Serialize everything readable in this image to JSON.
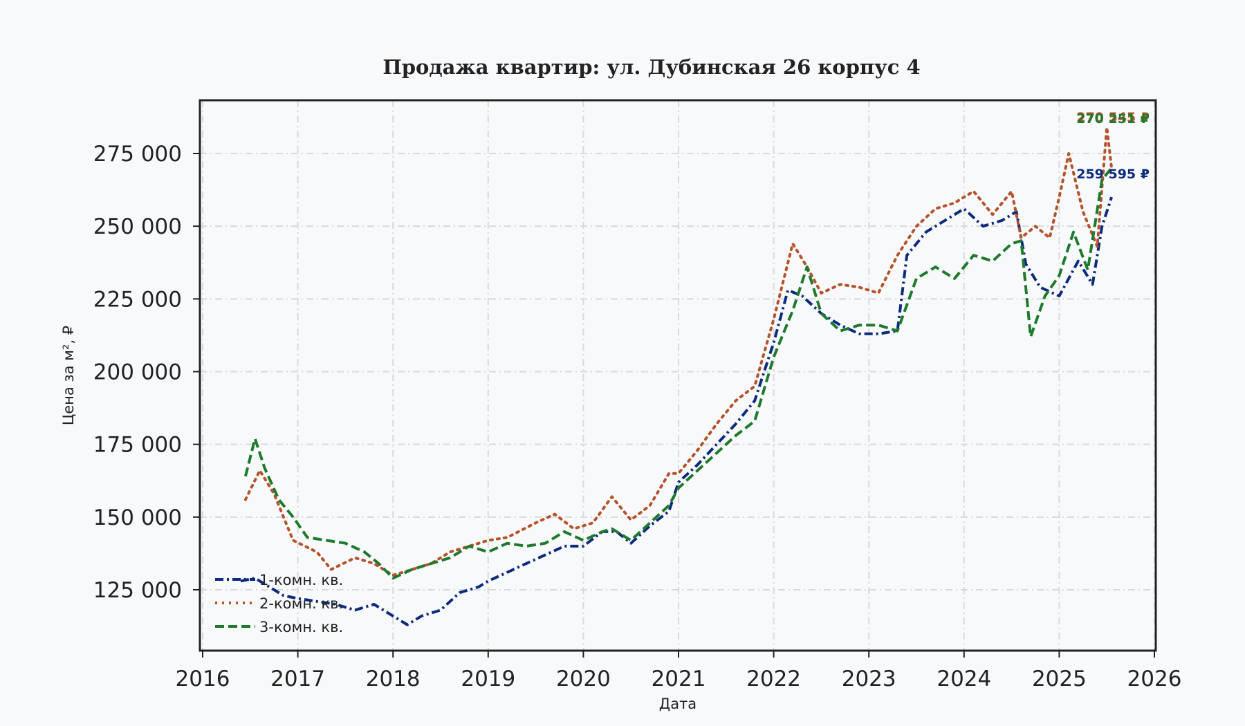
{
  "chart_data": {
    "type": "line",
    "title": "Продажа квартир: ул. Дубинская 26 корпус 4",
    "xlabel": "Дата",
    "ylabel": "Цена за м², ₽",
    "xlim": [
      2016.0,
      2026.0
    ],
    "ylim": [
      105000,
      292000
    ],
    "x_ticks": [
      "2016",
      "2017",
      "2018",
      "2019",
      "2020",
      "2021",
      "2022",
      "2023",
      "2024",
      "2025",
      "2026"
    ],
    "y_ticks": [
      "125 000",
      "150 000",
      "175 000",
      "200 000",
      "225 000",
      "250 000",
      "275 000"
    ],
    "y_tick_values": [
      125000,
      150000,
      175000,
      200000,
      225000,
      250000,
      275000
    ],
    "grid": true,
    "legend_position": "bottom-left",
    "series": [
      {
        "name": "1-комн. кв.",
        "color": "#0d2b7e",
        "style": "dashdot",
        "end_label": "259 595 ₽",
        "x": [
          2016.4,
          2016.55,
          2016.7,
          2016.85,
          2017.0,
          2017.2,
          2017.4,
          2017.6,
          2017.8,
          2018.0,
          2018.15,
          2018.3,
          2018.5,
          2018.7,
          2018.9,
          2019.0,
          2019.2,
          2019.4,
          2019.6,
          2019.8,
          2020.0,
          2020.2,
          2020.35,
          2020.5,
          2020.7,
          2020.9,
          2021.0,
          2021.2,
          2021.4,
          2021.6,
          2021.8,
          2022.0,
          2022.15,
          2022.3,
          2022.5,
          2022.7,
          2022.9,
          2023.1,
          2023.3,
          2023.4,
          2023.6,
          2023.8,
          2024.0,
          2024.2,
          2024.4,
          2024.55,
          2024.65,
          2024.8,
          2025.0,
          2025.2,
          2025.35,
          2025.45,
          2025.55
        ],
        "y": [
          128000,
          129000,
          126000,
          123000,
          122000,
          121000,
          120000,
          118000,
          120000,
          116000,
          113000,
          116000,
          118000,
          124000,
          126000,
          128000,
          131000,
          134000,
          137000,
          140000,
          140000,
          145000,
          145000,
          141000,
          147000,
          152000,
          162000,
          168000,
          175000,
          182000,
          190000,
          210000,
          228000,
          226000,
          220000,
          216000,
          213000,
          213000,
          214000,
          240000,
          248000,
          252000,
          256000,
          250000,
          252000,
          255000,
          237000,
          229000,
          226000,
          238000,
          230000,
          250000,
          260000
        ]
      },
      {
        "name": "2-комн. кв.",
        "color": "#b5532a",
        "style": "dotted",
        "end_label": "270 545 ₽",
        "x": [
          2016.45,
          2016.6,
          2016.75,
          2016.95,
          2017.2,
          2017.35,
          2017.6,
          2017.8,
          2018.0,
          2018.2,
          2018.4,
          2018.6,
          2018.8,
          2019.0,
          2019.2,
          2019.5,
          2019.7,
          2019.9,
          2020.1,
          2020.3,
          2020.5,
          2020.7,
          2020.9,
          2021.0,
          2021.2,
          2021.4,
          2021.6,
          2021.8,
          2022.0,
          2022.2,
          2022.35,
          2022.5,
          2022.7,
          2022.9,
          2023.1,
          2023.3,
          2023.5,
          2023.7,
          2023.9,
          2024.1,
          2024.3,
          2024.5,
          2024.6,
          2024.75,
          2024.9,
          2025.0,
          2025.1,
          2025.25,
          2025.4,
          2025.5,
          2025.55
        ],
        "y": [
          156000,
          166000,
          158000,
          142000,
          138000,
          132000,
          136000,
          134000,
          130000,
          132000,
          134000,
          138000,
          140000,
          142000,
          143000,
          148000,
          151000,
          146000,
          148000,
          157000,
          149000,
          154000,
          165000,
          165000,
          173000,
          182000,
          190000,
          195000,
          218000,
          244000,
          236000,
          227000,
          230000,
          229000,
          227000,
          240000,
          250000,
          256000,
          258000,
          262000,
          254000,
          262000,
          246000,
          250000,
          246000,
          260000,
          275000,
          255000,
          243000,
          284000,
          270000
        ]
      },
      {
        "name": "3-комн. кв.",
        "color": "#1e7a2c",
        "style": "dashed",
        "end_label": "270 251 ₽",
        "x": [
          2016.45,
          2016.55,
          2016.65,
          2016.8,
          2016.95,
          2017.1,
          2017.3,
          2017.5,
          2017.7,
          2017.85,
          2018.0,
          2018.2,
          2018.4,
          2018.6,
          2018.8,
          2019.0,
          2019.2,
          2019.4,
          2019.6,
          2019.8,
          2020.0,
          2020.2,
          2020.3,
          2020.5,
          2020.7,
          2020.9,
          2021.0,
          2021.2,
          2021.4,
          2021.6,
          2021.8,
          2022.0,
          2022.2,
          2022.35,
          2022.5,
          2022.7,
          2022.9,
          2023.1,
          2023.3,
          2023.5,
          2023.7,
          2023.9,
          2024.1,
          2024.3,
          2024.5,
          2024.6,
          2024.7,
          2024.85,
          2025.0,
          2025.15,
          2025.3,
          2025.45,
          2025.55
        ],
        "y": [
          164000,
          177000,
          167000,
          156000,
          150000,
          143000,
          142000,
          141000,
          138000,
          134000,
          129000,
          132000,
          134000,
          136000,
          140000,
          138000,
          141000,
          140000,
          141000,
          145000,
          142000,
          145000,
          146000,
          142000,
          148000,
          154000,
          160000,
          166000,
          172000,
          178000,
          183000,
          205000,
          221000,
          236000,
          220000,
          214000,
          216000,
          216000,
          214000,
          232000,
          236000,
          232000,
          240000,
          238000,
          244000,
          245000,
          212000,
          226000,
          233000,
          248000,
          235000,
          266000,
          270000
        ]
      }
    ]
  }
}
